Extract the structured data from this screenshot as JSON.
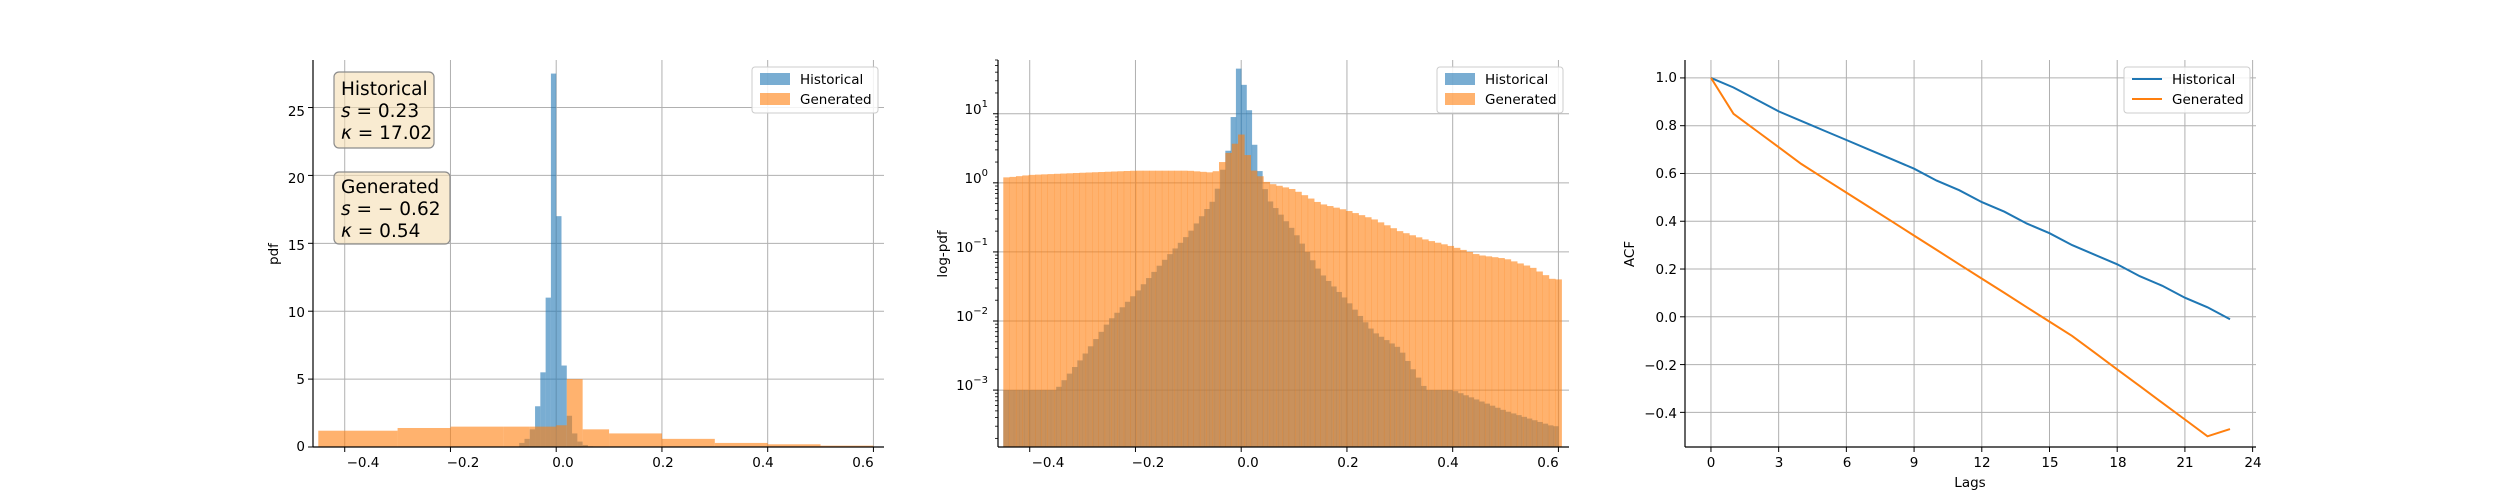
{
  "colors": {
    "historical": "#1f77b4",
    "generated": "#ff7f0e",
    "grid": "#b0b0b0",
    "stat_box_fill": "#f5deb3",
    "stat_box_edge": "#8c8c8c"
  },
  "panels": {
    "pdf": {
      "ylabel": "pdf",
      "x_ticks": [
        "−0.4",
        "−0.2",
        "0.0",
        "0.2",
        "0.4",
        "0.6"
      ],
      "y_ticks": [
        "0",
        "5",
        "10",
        "15",
        "20",
        "25"
      ]
    },
    "logpdf": {
      "ylabel": "log-pdf",
      "x_ticks": [
        "−0.4",
        "−0.2",
        "0.0",
        "0.2",
        "0.4",
        "0.6"
      ],
      "y_ticks": [
        {
          "base": "10",
          "exp": "1"
        },
        {
          "base": "10",
          "exp": "0"
        },
        {
          "base": "10",
          "exp": "−1"
        },
        {
          "base": "10",
          "exp": "−2"
        },
        {
          "base": "10",
          "exp": "−3"
        }
      ]
    },
    "acf": {
      "ylabel": "ACF",
      "xlabel": "Lags",
      "x_ticks": [
        "0",
        "3",
        "6",
        "9",
        "12",
        "15",
        "18",
        "21",
        "24"
      ],
      "y_ticks": [
        "1.0",
        "0.8",
        "0.6",
        "0.4",
        "0.2",
        "0.0",
        "−0.2",
        "−0.4"
      ]
    }
  },
  "legend": {
    "historical": "Historical",
    "generated": "Generated"
  },
  "stats": {
    "historical": {
      "title": "Historical",
      "s_value": "0.23",
      "k_value": "17.02"
    },
    "generated": {
      "title": "Generated",
      "s_value": "− 0.62",
      "k_value": "0.54"
    }
  },
  "chart_data": [
    {
      "type": "bar",
      "subtype": "histogram",
      "ylabel": "pdf",
      "xlim": [
        -0.46,
        0.62
      ],
      "ylim": [
        0,
        28.5
      ],
      "grid": true,
      "legend_position": "top-right",
      "series": [
        {
          "name": "Historical",
          "bin_edges": [
            -0.07,
            -0.06,
            -0.05,
            -0.04,
            -0.03,
            -0.02,
            -0.01,
            0.0,
            0.01,
            0.02,
            0.03,
            0.04,
            0.05,
            0.06,
            0.07
          ],
          "values": [
            0.3,
            0.6,
            1.3,
            3.0,
            5.5,
            11.0,
            27.5,
            17.0,
            6.0,
            2.3,
            1.0,
            0.4,
            0.15,
            0.05
          ]
        },
        {
          "name": "Generated",
          "bin_edges": [
            -0.45,
            -0.3,
            -0.2,
            -0.1,
            -0.05,
            0.0,
            0.02,
            0.05,
            0.1,
            0.2,
            0.3,
            0.4,
            0.5,
            0.6
          ],
          "values": [
            1.2,
            1.4,
            1.5,
            1.5,
            1.5,
            1.6,
            5.0,
            1.3,
            1.0,
            0.6,
            0.3,
            0.2,
            0.1
          ]
        }
      ]
    },
    {
      "type": "bar",
      "subtype": "histogram",
      "ylabel": "log-pdf",
      "y_scale": "log",
      "xlim": [
        -0.46,
        0.62
      ],
      "ylim": [
        0.00015,
        60
      ],
      "grid": true,
      "legend_position": "top-right",
      "series": [
        {
          "name": "Historical",
          "points": [
            [
              -0.44,
              0.001
            ],
            [
              -0.4,
              0.001
            ],
            [
              -0.35,
              0.001
            ],
            [
              -0.3,
              0.003
            ],
            [
              -0.25,
              0.01
            ],
            [
              -0.2,
              0.025
            ],
            [
              -0.15,
              0.07
            ],
            [
              -0.1,
              0.18
            ],
            [
              -0.05,
              0.6
            ],
            [
              -0.02,
              4.0
            ],
            [
              -0.005,
              45.0
            ],
            [
              0.01,
              20.0
            ],
            [
              0.03,
              2.0
            ],
            [
              0.05,
              0.6
            ],
            [
              0.1,
              0.2
            ],
            [
              0.15,
              0.05
            ],
            [
              0.2,
              0.02
            ],
            [
              0.25,
              0.007
            ],
            [
              0.3,
              0.004
            ],
            [
              0.35,
              0.001
            ],
            [
              0.4,
              0.001
            ],
            [
              0.5,
              0.0005
            ],
            [
              0.59,
              0.0003
            ]
          ]
        },
        {
          "name": "Generated",
          "points": [
            [
              -0.44,
              1.2
            ],
            [
              -0.4,
              1.3
            ],
            [
              -0.3,
              1.4
            ],
            [
              -0.2,
              1.5
            ],
            [
              -0.1,
              1.5
            ],
            [
              -0.05,
              1.4
            ],
            [
              0.0,
              5.0
            ],
            [
              0.02,
              1.6
            ],
            [
              0.05,
              1.0
            ],
            [
              0.1,
              0.8
            ],
            [
              0.15,
              0.5
            ],
            [
              0.2,
              0.4
            ],
            [
              0.25,
              0.3
            ],
            [
              0.3,
              0.2
            ],
            [
              0.35,
              0.15
            ],
            [
              0.4,
              0.12
            ],
            [
              0.45,
              0.09
            ],
            [
              0.5,
              0.08
            ],
            [
              0.55,
              0.06
            ],
            [
              0.59,
              0.04
            ]
          ]
        }
      ]
    },
    {
      "type": "line",
      "ylabel": "ACF",
      "xlabel": "Lags",
      "xlim": [
        -1.15,
        24.15
      ],
      "ylim": [
        -0.545,
        1.075
      ],
      "grid": true,
      "legend_position": "top-right",
      "series": [
        {
          "name": "Historical",
          "x": [
            0,
            1,
            2,
            3,
            4,
            5,
            6,
            7,
            8,
            9,
            10,
            11,
            12,
            13,
            14,
            15,
            16,
            17,
            18,
            19,
            20,
            21,
            22,
            23
          ],
          "y": [
            1.0,
            0.96,
            0.91,
            0.86,
            0.82,
            0.78,
            0.74,
            0.7,
            0.66,
            0.62,
            0.57,
            0.53,
            0.48,
            0.44,
            0.39,
            0.35,
            0.3,
            0.26,
            0.22,
            0.17,
            0.13,
            0.08,
            0.04,
            -0.01
          ]
        },
        {
          "name": "Generated",
          "x": [
            0,
            1,
            2,
            3,
            4,
            5,
            6,
            7,
            8,
            9,
            10,
            11,
            12,
            13,
            14,
            15,
            16,
            17,
            18,
            19,
            20,
            21,
            22,
            23
          ],
          "y": [
            1.0,
            0.85,
            0.78,
            0.71,
            0.64,
            0.58,
            0.52,
            0.46,
            0.4,
            0.34,
            0.28,
            0.22,
            0.16,
            0.1,
            0.04,
            -0.02,
            -0.08,
            -0.15,
            -0.22,
            -0.29,
            -0.36,
            -0.43,
            -0.5,
            -0.47
          ]
        }
      ]
    }
  ]
}
